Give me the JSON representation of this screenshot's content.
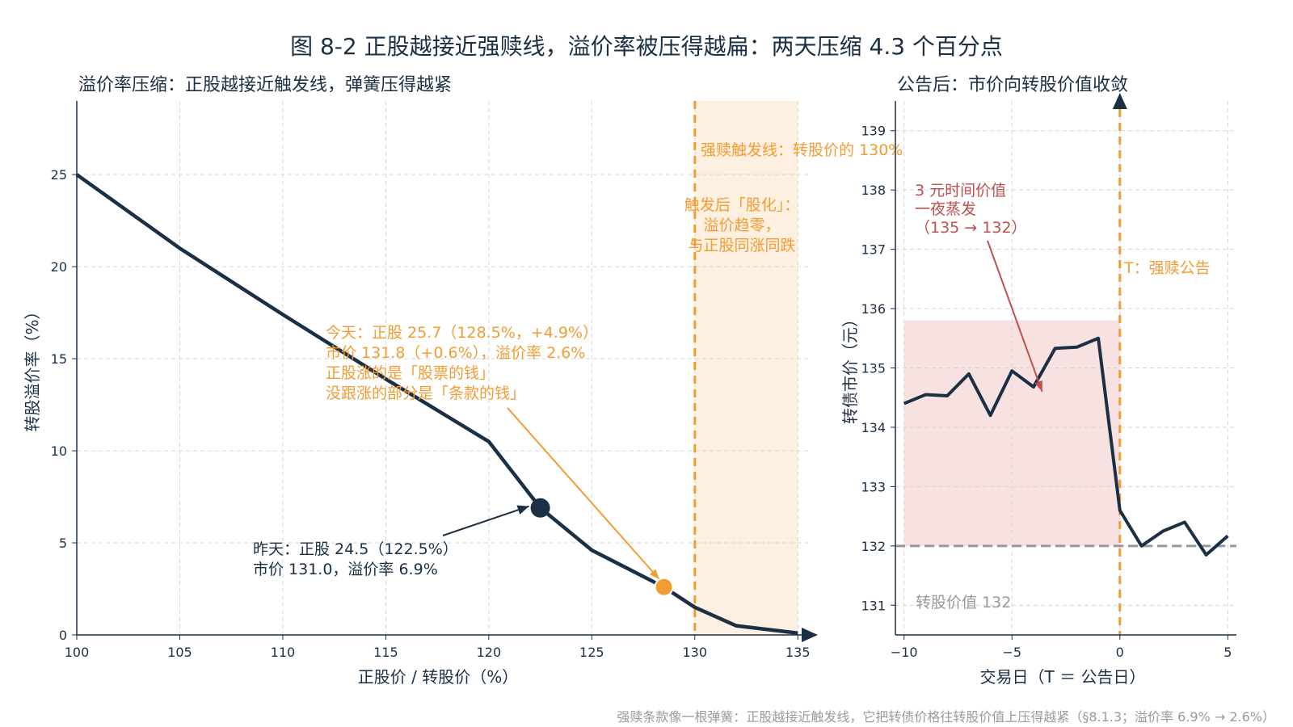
{
  "figure_title": "图 8-2 正股越接近强赎线，溢价率被压得越扁：两天压缩 4.3 个百分点",
  "footnote": "强赎条款像一根弹簧：正股越接近触发线，它把转债价格往转股价值上压得越紧（§8.1.3；溢价率 6.9% → 2.6%）",
  "colors": {
    "navy": "#1b2f45",
    "orange": "#f39c32",
    "red": "#c0504d",
    "gray": "#999999",
    "shade_orange": "#fdf0e0",
    "shade_red": "#f8e1e1"
  },
  "chart_data": [
    {
      "type": "line",
      "title": "溢价率压缩：正股越接近触发线，弹簧压得越紧",
      "xlabel": "正股价 / 转股价（%）",
      "ylabel": "转股溢价率（%）",
      "xlim": [
        100,
        135.5
      ],
      "ylim": [
        0,
        29
      ],
      "xticks": [
        100,
        105,
        110,
        115,
        120,
        125,
        130,
        135
      ],
      "yticks": [
        0,
        5,
        10,
        15,
        20,
        25
      ],
      "grid": true,
      "series": [
        {
          "x": [
            100,
            105,
            110,
            115,
            120,
            122.5,
            125,
            128.5,
            130,
            132,
            135
          ],
          "y": [
            25.0,
            21.0,
            17.4,
            13.9,
            10.5,
            6.9,
            4.6,
            2.6,
            1.5,
            0.5,
            0.1
          ]
        }
      ],
      "points": {
        "yesterday": {
          "x": 122.5,
          "y": 6.9
        },
        "today": {
          "x": 128.5,
          "y": 2.6
        }
      },
      "shaded_region": {
        "x": [
          130,
          135
        ]
      },
      "trigger_line_x": 130,
      "annotations": {
        "trigger": "强赎触发线：转股价的 130%",
        "post_trigger": [
          "触发后「股化」：",
          "溢价趋零，",
          "与正股同涨同跌"
        ],
        "today": [
          "今天：正股 25.7（128.5%，+4.9%）",
          "市价 131.8（+0.6%），溢价率 2.6%",
          "正股涨的是「股票的钱」",
          "没跟涨的部分是「条款的钱」"
        ],
        "yesterday": [
          "昨天：正股 24.5（122.5%）",
          "市价 131.0，溢价率 6.9%"
        ]
      }
    },
    {
      "type": "line",
      "title": "公告后：市价向转股价值收敛",
      "xlabel": "交易日（T ＝ 公告日）",
      "ylabel": "转债市价（元）",
      "xlim": [
        -10.4,
        5.4
      ],
      "ylim": [
        130.5,
        139.5
      ],
      "xticks": [
        -10,
        -5,
        0,
        5
      ],
      "xtick_labels": [
        "−10",
        "−5",
        "0",
        "5"
      ],
      "yticks": [
        131,
        132,
        133,
        134,
        135,
        136,
        137,
        138,
        139
      ],
      "grid": true,
      "series": [
        {
          "x": [
            -10,
            -9,
            -8,
            -7,
            -6,
            -5,
            -4,
            -3,
            -2,
            -1,
            0,
            1,
            2,
            3,
            4,
            5
          ],
          "y": [
            134.4,
            134.55,
            134.53,
            134.9,
            134.2,
            134.95,
            134.68,
            135.33,
            135.35,
            135.5,
            132.6,
            132.0,
            132.25,
            132.4,
            131.85,
            132.17
          ]
        }
      ],
      "conversion_value": 132,
      "announcement_x": 0,
      "shaded_region": {
        "x": [
          -10,
          0
        ],
        "y": [
          132,
          135.8
        ]
      },
      "annotations": {
        "time_value": [
          "3 元时间价值",
          "一夜蒸发",
          "（135 → 132）"
        ],
        "announce": "T：强赎公告",
        "conversion_value": "转股价值 132"
      }
    }
  ]
}
